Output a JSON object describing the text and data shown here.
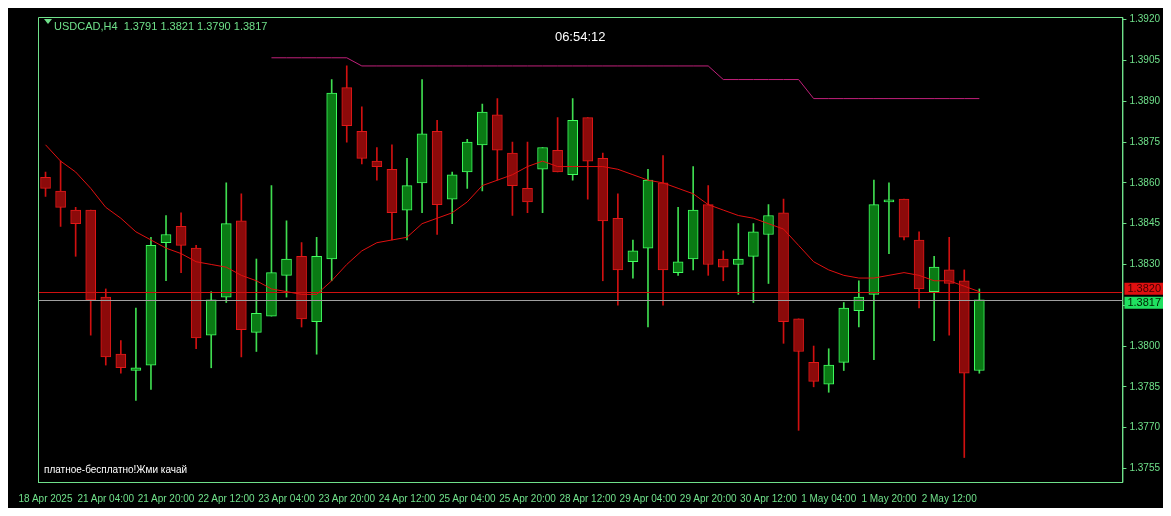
{
  "chart_data": {
    "type": "candlestick",
    "title": "USDCAD,H4  1.3791 1.3821 1.3790 1.3817",
    "annotations": [
      "06:54:12",
      "платное-бесплатно!Жми качай"
    ],
    "categories": [
      "18 Apr 2025",
      null,
      null,
      null,
      "21 Apr 04:00",
      null,
      null,
      null,
      "21 Apr 20:00",
      null,
      null,
      null,
      "22 Apr 12:00",
      null,
      null,
      null,
      "23 Apr 04:00",
      null,
      null,
      null,
      "23 Apr 20:00",
      null,
      null,
      null,
      "24 Apr 12:00",
      null,
      null,
      null,
      "25 Apr 04:00",
      null,
      null,
      null,
      "25 Apr 20:00",
      null,
      null,
      null,
      "28 Apr 12:00",
      null,
      null,
      null,
      "29 Apr 04:00",
      null,
      null,
      null,
      "29 Apr 20:00",
      null,
      null,
      null,
      "30 Apr 12:00",
      null,
      null,
      null,
      "1 May 04:00",
      null,
      null,
      null,
      "1 May 20:00",
      null,
      null,
      null,
      "2 May 12:00",
      null,
      null,
      null,
      null,
      null,
      null,
      null,
      null,
      null,
      null,
      null
    ],
    "ohlc": [
      [
        1.3862,
        1.3864,
        1.3855,
        1.3858
      ],
      [
        1.3857,
        1.3868,
        1.3844,
        1.3851
      ],
      [
        1.385,
        1.3851,
        1.3833,
        1.3845
      ],
      [
        1.385,
        1.385,
        1.3804,
        1.3817
      ],
      [
        1.3818,
        1.3821,
        1.3793,
        1.3796
      ],
      [
        1.3797,
        1.3802,
        1.379,
        1.3792
      ],
      [
        1.3791,
        1.3814,
        1.378,
        1.3792
      ],
      [
        1.3793,
        1.384,
        1.3784,
        1.3837
      ],
      [
        1.3838,
        1.3848,
        1.3824,
        1.3841
      ],
      [
        1.3844,
        1.3849,
        1.3827,
        1.3837
      ],
      [
        1.3836,
        1.3837,
        1.3799,
        1.3803
      ],
      [
        1.3804,
        1.382,
        1.3792,
        1.3817
      ],
      [
        1.3818,
        1.386,
        1.3816,
        1.3845
      ],
      [
        1.3846,
        1.3856,
        1.3796,
        1.3806
      ],
      [
        1.3805,
        1.3832,
        1.3798,
        1.3812
      ],
      [
        1.3811,
        1.3859,
        1.3811,
        1.3827
      ],
      [
        1.3826,
        1.3846,
        1.3818,
        1.3832
      ],
      [
        1.3833,
        1.3838,
        1.3807,
        1.381
      ],
      [
        1.3809,
        1.384,
        1.3797,
        1.3833
      ],
      [
        1.3832,
        1.3898,
        1.3824,
        1.3893
      ],
      [
        1.3895,
        1.3903,
        1.3875,
        1.3881
      ],
      [
        1.3879,
        1.3888,
        1.3867,
        1.3869
      ],
      [
        1.3868,
        1.3873,
        1.3861,
        1.3866
      ],
      [
        1.3865,
        1.3874,
        1.3839,
        1.3849
      ],
      [
        1.385,
        1.3869,
        1.3839,
        1.3859
      ],
      [
        1.386,
        1.3898,
        1.3849,
        1.3878
      ],
      [
        1.3879,
        1.3883,
        1.3841,
        1.3852
      ],
      [
        1.3854,
        1.3864,
        1.3845,
        1.3863
      ],
      [
        1.3864,
        1.3876,
        1.3858,
        1.3875
      ],
      [
        1.3874,
        1.3889,
        1.3857,
        1.3886
      ],
      [
        1.3885,
        1.3891,
        1.3861,
        1.3872
      ],
      [
        1.3871,
        1.3875,
        1.3848,
        1.3859
      ],
      [
        1.3858,
        1.3875,
        1.3849,
        1.3853
      ],
      [
        1.3865,
        1.3873,
        1.3849,
        1.3873
      ],
      [
        1.3872,
        1.3884,
        1.3864,
        1.3864
      ],
      [
        1.3863,
        1.3891,
        1.3861,
        1.3883
      ],
      [
        1.3884,
        1.3884,
        1.3854,
        1.3868
      ],
      [
        1.3869,
        1.3871,
        1.3824,
        1.3846
      ],
      [
        1.3847,
        1.3856,
        1.3815,
        1.3828
      ],
      [
        1.3831,
        1.3839,
        1.3825,
        1.3835
      ],
      [
        1.3836,
        1.3865,
        1.3807,
        1.3861
      ],
      [
        1.386,
        1.387,
        1.3815,
        1.3828
      ],
      [
        1.3827,
        1.3851,
        1.3826,
        1.3831
      ],
      [
        1.3832,
        1.3866,
        1.3828,
        1.385
      ],
      [
        1.3852,
        1.3859,
        1.3826,
        1.383
      ],
      [
        1.3832,
        1.3835,
        1.3824,
        1.3829
      ],
      [
        1.383,
        1.3845,
        1.3819,
        1.3832
      ],
      [
        1.3833,
        1.3845,
        1.3816,
        1.3842
      ],
      [
        1.3841,
        1.3852,
        1.3823,
        1.3848
      ],
      [
        1.3849,
        1.3854,
        1.3801,
        1.3809
      ],
      [
        1.381,
        1.381,
        1.3769,
        1.3798
      ],
      [
        1.3794,
        1.38,
        1.3785,
        1.3787
      ],
      [
        1.3786,
        1.3799,
        1.3783,
        1.3793
      ],
      [
        1.3794,
        1.3816,
        1.3791,
        1.3814
      ],
      [
        1.3813,
        1.3824,
        1.3807,
        1.3818
      ],
      [
        1.3819,
        1.3861,
        1.3795,
        1.3852
      ],
      [
        1.3853,
        1.386,
        1.3834,
        1.3853
      ],
      [
        1.3854,
        1.3854,
        1.3839,
        1.384
      ],
      [
        1.3839,
        1.3842,
        1.3814,
        1.3821
      ],
      [
        1.382,
        1.3833,
        1.3802,
        1.3829
      ],
      [
        1.3828,
        1.384,
        1.3804,
        1.3823
      ],
      [
        1.3824,
        1.3828,
        1.3759,
        1.379
      ],
      [
        1.3791,
        1.3821,
        1.379,
        1.3817
      ],
      null,
      null,
      null,
      null,
      null,
      null,
      null,
      null,
      null
    ],
    "series": [
      {
        "type": "line",
        "color": "#e01010",
        "values": [
          1.3874,
          1.3868,
          1.3864,
          1.3858,
          1.3851,
          1.3847,
          1.3842,
          1.3839,
          1.3836,
          1.3834,
          1.3831,
          1.383,
          1.3829,
          1.3826,
          1.3824,
          1.3821,
          1.382,
          1.3819,
          1.3819,
          1.3824,
          1.383,
          1.3835,
          1.3838,
          1.3839,
          1.384,
          1.3845,
          1.3847,
          1.3849,
          1.3853,
          1.3859,
          1.3861,
          1.3863,
          1.3866,
          1.3868,
          1.3866,
          1.3866,
          1.3866,
          1.3866,
          1.3865,
          1.3863,
          1.3861,
          1.386,
          1.3858,
          1.3856,
          1.3852,
          1.385,
          1.3848,
          1.3847,
          1.3845,
          1.3843,
          1.3837,
          1.3831,
          1.3828,
          1.3826,
          1.3825,
          1.3825,
          1.3826,
          1.3827,
          1.3826,
          1.3824,
          1.3824,
          1.3822,
          1.382,
          null,
          null,
          null,
          null,
          null,
          null,
          null,
          null,
          null
        ]
      },
      {
        "type": "line",
        "color": "#c0207a",
        "values": [
          null,
          null,
          null,
          null,
          null,
          null,
          null,
          null,
          null,
          null,
          null,
          null,
          null,
          null,
          null,
          1.3906,
          1.3906,
          1.3906,
          1.3906,
          1.3906,
          1.3906,
          1.3903,
          1.3903,
          1.3903,
          1.3903,
          1.3903,
          1.3903,
          1.3903,
          1.3903,
          1.3903,
          1.3903,
          1.3903,
          1.3903,
          1.3903,
          1.3903,
          1.3903,
          1.3903,
          1.3903,
          1.3903,
          1.3903,
          1.3903,
          1.3903,
          1.3903,
          1.3903,
          1.3903,
          1.3898,
          1.3898,
          1.3898,
          1.3898,
          1.3898,
          1.3898,
          1.3891,
          1.3891,
          1.3891,
          1.3891,
          1.3891,
          1.3891,
          1.3891,
          1.3891,
          1.3891,
          1.3891,
          1.3891,
          1.3891,
          null,
          null,
          null,
          null,
          null,
          null,
          null,
          null,
          null
        ]
      }
    ],
    "ref_lines": [
      {
        "axis": "y",
        "value": 1.382,
        "label": "1.3820",
        "color": "#d01010"
      },
      {
        "axis": "y",
        "value": 1.3817,
        "label": "1.3817",
        "color": "#a0a0a0"
      }
    ],
    "ylim": [
      1.375,
      1.3921
    ],
    "yticks": [
      {
        "value": 1.392,
        "label": "1.3920"
      },
      {
        "value": 1.3905,
        "label": "1.3905"
      },
      {
        "value": 1.389,
        "label": "1.3890"
      },
      {
        "value": 1.3875,
        "label": "1.3875"
      },
      {
        "value": 1.386,
        "label": "1.3860"
      },
      {
        "value": 1.3845,
        "label": "1.3845"
      },
      {
        "value": 1.383,
        "label": "1.3830"
      },
      {
        "value": 1.3815,
        "label": null
      },
      {
        "value": 1.38,
        "label": "1.3800"
      },
      {
        "value": 1.3785,
        "label": "1.3785"
      },
      {
        "value": 1.377,
        "label": "1.3770"
      },
      {
        "value": 1.3755,
        "label": "1.3755"
      }
    ],
    "grid": false,
    "legend": false
  }
}
